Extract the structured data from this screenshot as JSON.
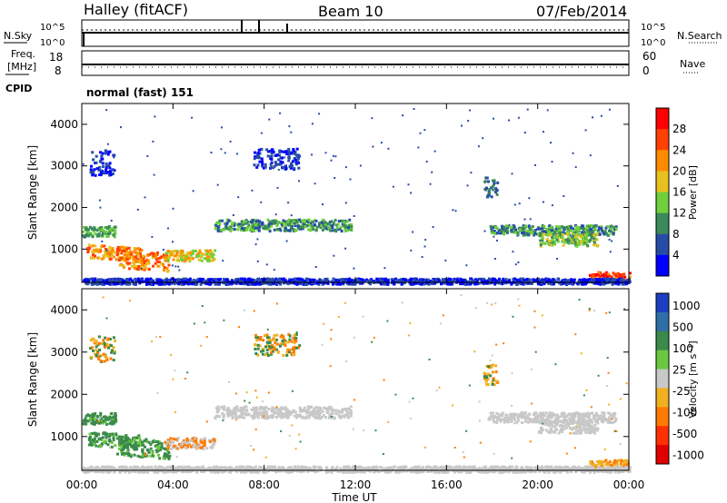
{
  "header": {
    "station": "Halley (fitACF)",
    "beam": "Beam 10",
    "date": "07/Feb/2014"
  },
  "status_panels": {
    "nsky_label": "N.Sky",
    "nsearch_label": "N.Search",
    "nsky_ticks": [
      "10^5",
      "10^0"
    ],
    "nsearch_ticks": [
      "10^5",
      "10^0"
    ],
    "freq_label": "Freq.",
    "freq_unit": "[MHz]",
    "freq_ticks": [
      "18",
      "8"
    ],
    "nave_label": "Nave",
    "nave_ticks": [
      "60",
      "0"
    ],
    "cpid_label": "CPID",
    "cpid_value": "normal (fast) 151",
    "freq_value_mhz": 11
  },
  "chart_data": [
    {
      "type": "heatmap",
      "name": "power-panel",
      "ylabel": "Slant Range [km]",
      "xlabel": "",
      "x_ticks": [
        "00:00",
        "04:00",
        "08:00",
        "12:00",
        "16:00",
        "20:00",
        "00:00"
      ],
      "y_ticks": [
        1000,
        2000,
        3000,
        4000
      ],
      "ylim": [
        200,
        4500
      ],
      "xlim_hours": [
        0,
        24
      ],
      "colorbar_label": "Power [dB]",
      "colorbar_ticks": [
        "4",
        "8",
        "12",
        "16",
        "20",
        "24",
        "28"
      ],
      "colors": [
        "#0000ff",
        "#264ca8",
        "#3b8a5a",
        "#6fcf3c",
        "#e8c020",
        "#ff8c00",
        "#ff4000",
        "#ff0000"
      ]
    },
    {
      "type": "heatmap",
      "name": "velocity-panel",
      "ylabel": "Slant Range [km]",
      "xlabel": "Time UT",
      "x_ticks": [
        "00:00",
        "04:00",
        "08:00",
        "12:00",
        "16:00",
        "20:00",
        "00:00"
      ],
      "y_ticks": [
        1000,
        2000,
        3000,
        4000
      ],
      "ylim": [
        200,
        4500
      ],
      "xlim_hours": [
        0,
        24
      ],
      "colorbar_label": "Velocity [m s⁻¹]",
      "colorbar_ticks": [
        "1000",
        "500",
        "100",
        "25",
        "-25",
        "-100",
        "-500",
        "-1000"
      ],
      "colors": [
        "#1c3fc0",
        "#2f6fa8",
        "#3a8a4a",
        "#69c840",
        "#c8c8c8",
        "#f0b020",
        "#ff7a00",
        "#ff3000",
        "#e00000"
      ]
    }
  ]
}
